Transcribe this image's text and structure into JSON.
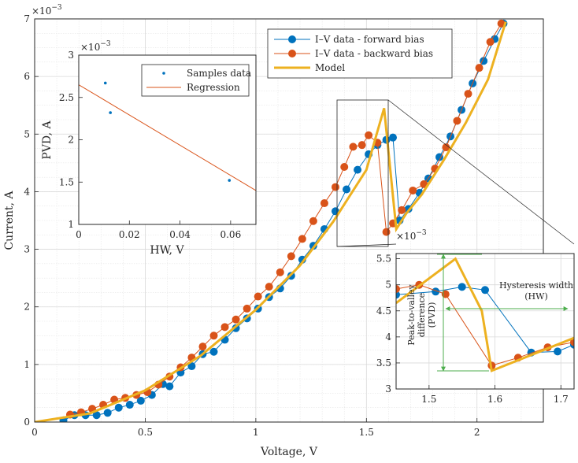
{
  "chart_data": [
    {
      "id": "main",
      "type": "line",
      "xlabel": "Voltage, V",
      "ylabel": "Current, A",
      "exponent_label": "×10",
      "exponent_power": "−3",
      "xlim": [
        0,
        2.3
      ],
      "ylim": [
        0,
        7
      ],
      "x_ticks": [
        0,
        0.5,
        1,
        1.5,
        2
      ],
      "x_tick_labels": [
        "0",
        "0.5",
        "1",
        "1.5",
        "2"
      ],
      "y_ticks": [
        0,
        1,
        2,
        3,
        4,
        5,
        6,
        7
      ],
      "y_tick_labels": [
        "0",
        "1",
        "2",
        "3",
        "4",
        "5",
        "6",
        "7"
      ],
      "grid": true,
      "legend_position": "top-right",
      "series": [
        {
          "name": "I–V data - forward bias",
          "color": "#0072BD",
          "marker": "circle",
          "x": [
            0.13,
            0.18,
            0.23,
            0.28,
            0.33,
            0.38,
            0.43,
            0.48,
            0.53,
            0.58,
            0.61,
            0.66,
            0.71,
            0.76,
            0.81,
            0.86,
            0.91,
            0.96,
            1.01,
            1.06,
            1.11,
            1.16,
            1.21,
            1.26,
            1.31,
            1.36,
            1.41,
            1.46,
            1.51,
            1.55,
            1.59,
            1.62,
            1.65,
            1.69,
            1.74,
            1.78,
            1.83,
            1.88,
            1.93,
            1.98,
            2.03,
            2.08,
            2.12
          ],
          "y": [
            0.03,
            0.12,
            0.12,
            0.12,
            0.16,
            0.25,
            0.3,
            0.37,
            0.47,
            0.66,
            0.62,
            0.86,
            0.97,
            1.18,
            1.22,
            1.43,
            1.63,
            1.8,
            1.97,
            2.17,
            2.32,
            2.54,
            2.82,
            3.06,
            3.35,
            3.66,
            4.04,
            4.38,
            4.65,
            4.81,
            4.9,
            4.94,
            3.5,
            3.7,
            3.98,
            4.23,
            4.6,
            4.96,
            5.42,
            5.88,
            6.27,
            6.65,
            6.92
          ]
        },
        {
          "name": "I–V data - backward bias",
          "color": "#D95319",
          "marker": "circle",
          "x": [
            2.11,
            2.06,
            2.01,
            1.96,
            1.91,
            1.86,
            1.81,
            1.76,
            1.71,
            1.66,
            1.62,
            1.59,
            1.55,
            1.51,
            1.48,
            1.44,
            1.4,
            1.36,
            1.31,
            1.26,
            1.21,
            1.16,
            1.11,
            1.06,
            1.01,
            0.96,
            0.91,
            0.86,
            0.81,
            0.76,
            0.71,
            0.66,
            0.61,
            0.56,
            0.51,
            0.46,
            0.41,
            0.36,
            0.31,
            0.26,
            0.21,
            0.16
          ],
          "y": [
            6.92,
            6.6,
            6.15,
            5.7,
            5.23,
            4.77,
            4.4,
            4.13,
            4.02,
            3.68,
            3.45,
            3.3,
            4.85,
            4.98,
            4.81,
            4.78,
            4.43,
            4.08,
            3.8,
            3.49,
            3.18,
            2.88,
            2.6,
            2.35,
            2.18,
            1.97,
            1.78,
            1.65,
            1.5,
            1.31,
            1.12,
            0.95,
            0.79,
            0.65,
            0.52,
            0.47,
            0.42,
            0.39,
            0.3,
            0.23,
            0.17,
            0.13
          ]
        },
        {
          "name": "Model",
          "color": "#EDB120",
          "marker": "none",
          "x": [
            0,
            0.25,
            0.5,
            0.75,
            1.0,
            1.2,
            1.35,
            1.5,
            1.58,
            1.635,
            1.68,
            1.75,
            1.85,
            1.95,
            2.05,
            2.13
          ],
          "y": [
            0,
            0.15,
            0.55,
            1.15,
            1.95,
            2.72,
            3.48,
            4.38,
            5.45,
            3.35,
            3.62,
            3.95,
            4.55,
            5.2,
            5.95,
            6.95
          ]
        }
      ]
    },
    {
      "id": "inset-pvd",
      "type": "scatter",
      "xlabel": "HW, V",
      "ylabel": "PVD, A",
      "exponent_label": "×10",
      "exponent_power": "−3",
      "xlim": [
        0,
        0.07
      ],
      "ylim": [
        1,
        3
      ],
      "x_ticks": [
        0,
        0.02,
        0.04,
        0.06
      ],
      "x_tick_labels": [
        "0",
        "0.02",
        "0.04",
        "0.06"
      ],
      "y_ticks": [
        1,
        1.5,
        2,
        2.5,
        3
      ],
      "y_tick_labels": [
        "1",
        "1.5",
        "2",
        "2.5",
        "3"
      ],
      "legend_position": "top-right",
      "series": [
        {
          "name": "Samples data",
          "color": "#0072BD",
          "marker": "dot",
          "x": [
            0.0105,
            0.0125,
            0.0595
          ],
          "y": [
            2.67,
            2.32,
            1.52
          ]
        },
        {
          "name": "Regression",
          "color": "#D95319",
          "marker": "none",
          "x": [
            0,
            0.07
          ],
          "y": [
            2.65,
            1.4
          ]
        }
      ]
    },
    {
      "id": "inset-zoom",
      "type": "line",
      "xlim": [
        1.45,
        1.72
      ],
      "ylim": [
        3,
        5.6
      ],
      "exponent_label": "×10",
      "exponent_power": "−3",
      "x_ticks": [
        1.5,
        1.6,
        1.7
      ],
      "x_tick_labels": [
        "1.5",
        "1.6",
        "1.7"
      ],
      "y_ticks": [
        3,
        3.5,
        4,
        4.5,
        5,
        5.5
      ],
      "y_tick_labels": [
        "3",
        "3.5",
        "4",
        "4.5",
        "5",
        "5.5"
      ],
      "annotations": {
        "hysteresis": "Hysteresis  width",
        "hysteresis_abbr": "(HW)",
        "pvd_line1": "Peak-to-valley",
        "pvd_line2": "difference",
        "pvd_line3": "(PVD)"
      },
      "series": [
        {
          "name": "forward",
          "color": "#0072BD",
          "marker": "circle",
          "x": [
            1.45,
            1.51,
            1.55,
            1.585,
            1.655,
            1.695,
            1.72
          ],
          "y": [
            4.81,
            4.87,
            4.96,
            4.9,
            3.7,
            3.72,
            3.85
          ]
        },
        {
          "name": "backward",
          "color": "#D95319",
          "marker": "circle",
          "x": [
            1.45,
            1.485,
            1.525,
            1.595,
            1.635,
            1.68,
            1.72
          ],
          "y": [
            4.92,
            5.0,
            4.82,
            3.45,
            3.6,
            3.8,
            3.9
          ]
        },
        {
          "name": "model",
          "color": "#EDB120",
          "marker": "none",
          "x": [
            1.45,
            1.54,
            1.58,
            1.595,
            1.72
          ],
          "y": [
            4.65,
            5.5,
            4.5,
            3.35,
            3.98
          ]
        }
      ]
    }
  ]
}
